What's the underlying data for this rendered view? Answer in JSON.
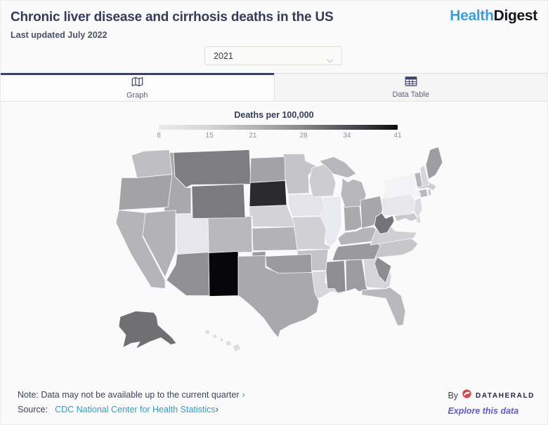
{
  "header": {
    "title": "Chronic liver disease and cirrhosis deaths in the US",
    "last_updated": "Last updated July 2022",
    "logo": {
      "part1": "Health",
      "part2": "Digest",
      "part1_color": "#3d9fd6",
      "part2_color": "#15161a"
    }
  },
  "controls": {
    "year_select": {
      "value": "2021"
    }
  },
  "tabs": [
    {
      "id": "graph",
      "label": "Graph",
      "icon": "map-icon",
      "active": true
    },
    {
      "id": "data-table",
      "label": "Data Table",
      "icon": "table-icon",
      "active": false
    }
  ],
  "legend": {
    "title": "Deaths per 100,000",
    "min": 8,
    "max": 41,
    "ticks": [
      8,
      15,
      21,
      28,
      34,
      41
    ],
    "gradient_stops": [
      "#ebebeb",
      "#d6d6d6",
      "#b4b4b6",
      "#88888a",
      "#4e4e52",
      "#0d0d0f"
    ]
  },
  "chart_data": {
    "type": "choropleth",
    "title": "Chronic liver disease and cirrhosis deaths in the US",
    "year": "2021",
    "unit": "Deaths per 100,000",
    "scale": {
      "min": 8,
      "max": 41
    },
    "states": [
      {
        "id": "AL",
        "name": "Alabama",
        "value_est": 20,
        "color": "#9c9ca0"
      },
      {
        "id": "AK",
        "name": "Alaska",
        "value_est": 26,
        "color": "#707074"
      },
      {
        "id": "AZ",
        "name": "Arizona",
        "value_est": 21,
        "color": "#919195"
      },
      {
        "id": "AR",
        "name": "Arkansas",
        "value_est": 14,
        "color": "#c3c3c7"
      },
      {
        "id": "CA",
        "name": "California",
        "value_est": 16,
        "color": "#b5b5b9"
      },
      {
        "id": "CO",
        "name": "Colorado",
        "value_est": 15,
        "color": "#b9b9bd"
      },
      {
        "id": "CT",
        "name": "Connecticut",
        "value_est": 15,
        "color": "#b9b9bd"
      },
      {
        "id": "DE",
        "name": "Delaware",
        "value_est": 11,
        "color": "#d9d9dd"
      },
      {
        "id": "FL",
        "name": "Florida",
        "value_est": 15,
        "color": "#b9b9bd"
      },
      {
        "id": "GA",
        "name": "Georgia",
        "value_est": 11,
        "color": "#d5d5d9"
      },
      {
        "id": "HI",
        "name": "Hawaii",
        "value_est": 10,
        "color": "#dddde1"
      },
      {
        "id": "ID",
        "name": "Idaho",
        "value_est": 18,
        "color": "#a9a9ad"
      },
      {
        "id": "IL",
        "name": "Illinois",
        "value_est": 8,
        "color": "#e9e9f1"
      },
      {
        "id": "IN",
        "name": "Indiana",
        "value_est": 18,
        "color": "#aaaaae"
      },
      {
        "id": "IA",
        "name": "Iowa",
        "value_est": 9,
        "color": "#e3e3e9"
      },
      {
        "id": "KS",
        "name": "Kansas",
        "value_est": 16,
        "color": "#b3b3b7"
      },
      {
        "id": "KY",
        "name": "Kentucky",
        "value_est": 16,
        "color": "#b5b5b9"
      },
      {
        "id": "LA",
        "name": "Louisiana",
        "value_est": 11,
        "color": "#d7d7db"
      },
      {
        "id": "ME",
        "name": "Maine",
        "value_est": 19,
        "color": "#9e9ea2"
      },
      {
        "id": "MD",
        "name": "Maryland",
        "value_est": 13,
        "color": "#c9c9cd"
      },
      {
        "id": "MA",
        "name": "Massachusetts",
        "value_est": 13,
        "color": "#cdcdd1"
      },
      {
        "id": "MI",
        "name": "Michigan",
        "value_est": 16,
        "color": "#b7b7bb"
      },
      {
        "id": "MN",
        "name": "Minnesota",
        "value_est": 14,
        "color": "#c5c5c9"
      },
      {
        "id": "MS",
        "name": "Mississippi",
        "value_est": 21,
        "color": "#8f8f93"
      },
      {
        "id": "MO",
        "name": "Missouri",
        "value_est": 12,
        "color": "#d1d1d5"
      },
      {
        "id": "MT",
        "name": "Montana",
        "value_est": 24,
        "color": "#7e7e82"
      },
      {
        "id": "NE",
        "name": "Nebraska",
        "value_est": 12,
        "color": "#d3d3d7"
      },
      {
        "id": "NV",
        "name": "Nevada",
        "value_est": 16,
        "color": "#b3b3b7"
      },
      {
        "id": "NH",
        "name": "New Hampshire",
        "value_est": 11,
        "color": "#d7d7db"
      },
      {
        "id": "NJ",
        "name": "New Jersey",
        "value_est": 10,
        "color": "#dcdce0"
      },
      {
        "id": "NM",
        "name": "New Mexico",
        "value_est": 41,
        "color": "#070709"
      },
      {
        "id": "NY",
        "name": "New York",
        "value_est": 8,
        "color": "#f3f3f5"
      },
      {
        "id": "NC",
        "name": "North Carolina",
        "value_est": 13,
        "color": "#c7c7cb"
      },
      {
        "id": "ND",
        "name": "North Dakota",
        "value_est": 19,
        "color": "#a3a3a7"
      },
      {
        "id": "OH",
        "name": "Ohio",
        "value_est": 18,
        "color": "#a7a7ab"
      },
      {
        "id": "OK",
        "name": "Oklahoma",
        "value_est": 20,
        "color": "#9b9b9f"
      },
      {
        "id": "OR",
        "name": "Oregon",
        "value_est": 19,
        "color": "#a3a3a7"
      },
      {
        "id": "PA",
        "name": "Pennsylvania",
        "value_est": 9,
        "color": "#e7e7e9"
      },
      {
        "id": "RI",
        "name": "Rhode Island",
        "value_est": 13,
        "color": "#cdcdd1"
      },
      {
        "id": "SC",
        "name": "South Carolina",
        "value_est": 22,
        "color": "#8d8d91"
      },
      {
        "id": "SD",
        "name": "South Dakota",
        "value_est": 37,
        "color": "#2a2a2e"
      },
      {
        "id": "TN",
        "name": "Tennessee",
        "value_est": 20,
        "color": "#99999d"
      },
      {
        "id": "TX",
        "name": "Texas",
        "value_est": 18,
        "color": "#a9a9ad"
      },
      {
        "id": "UT",
        "name": "Utah",
        "value_est": 9,
        "color": "#e6e6ec"
      },
      {
        "id": "VT",
        "name": "Vermont",
        "value_est": 16,
        "color": "#b5b5b9"
      },
      {
        "id": "VA",
        "name": "Virginia",
        "value_est": 12,
        "color": "#d0d0d4"
      },
      {
        "id": "WA",
        "name": "Washington",
        "value_est": 15,
        "color": "#bfbfc3"
      },
      {
        "id": "WV",
        "name": "West Virginia",
        "value_est": 26,
        "color": "#747478"
      },
      {
        "id": "WI",
        "name": "Wisconsin",
        "value_est": 13,
        "color": "#cdcdd1"
      },
      {
        "id": "WY",
        "name": "Wyoming",
        "value_est": 25,
        "color": "#7b7b7f"
      }
    ]
  },
  "footer": {
    "note_text": "Note: Data may not be available up to the current quarter",
    "note_chevron": "›",
    "source_label": "Source:",
    "source_link": "CDC National Center for Health Statistics",
    "source_chevron": "›",
    "source_link_color": "#2d9fc4",
    "by_label": "By",
    "brand": "DATAHERALD",
    "brand_icon_color": "#ce4a52",
    "explore_link": "Explore this data",
    "explore_color": "#5a5ec5"
  }
}
